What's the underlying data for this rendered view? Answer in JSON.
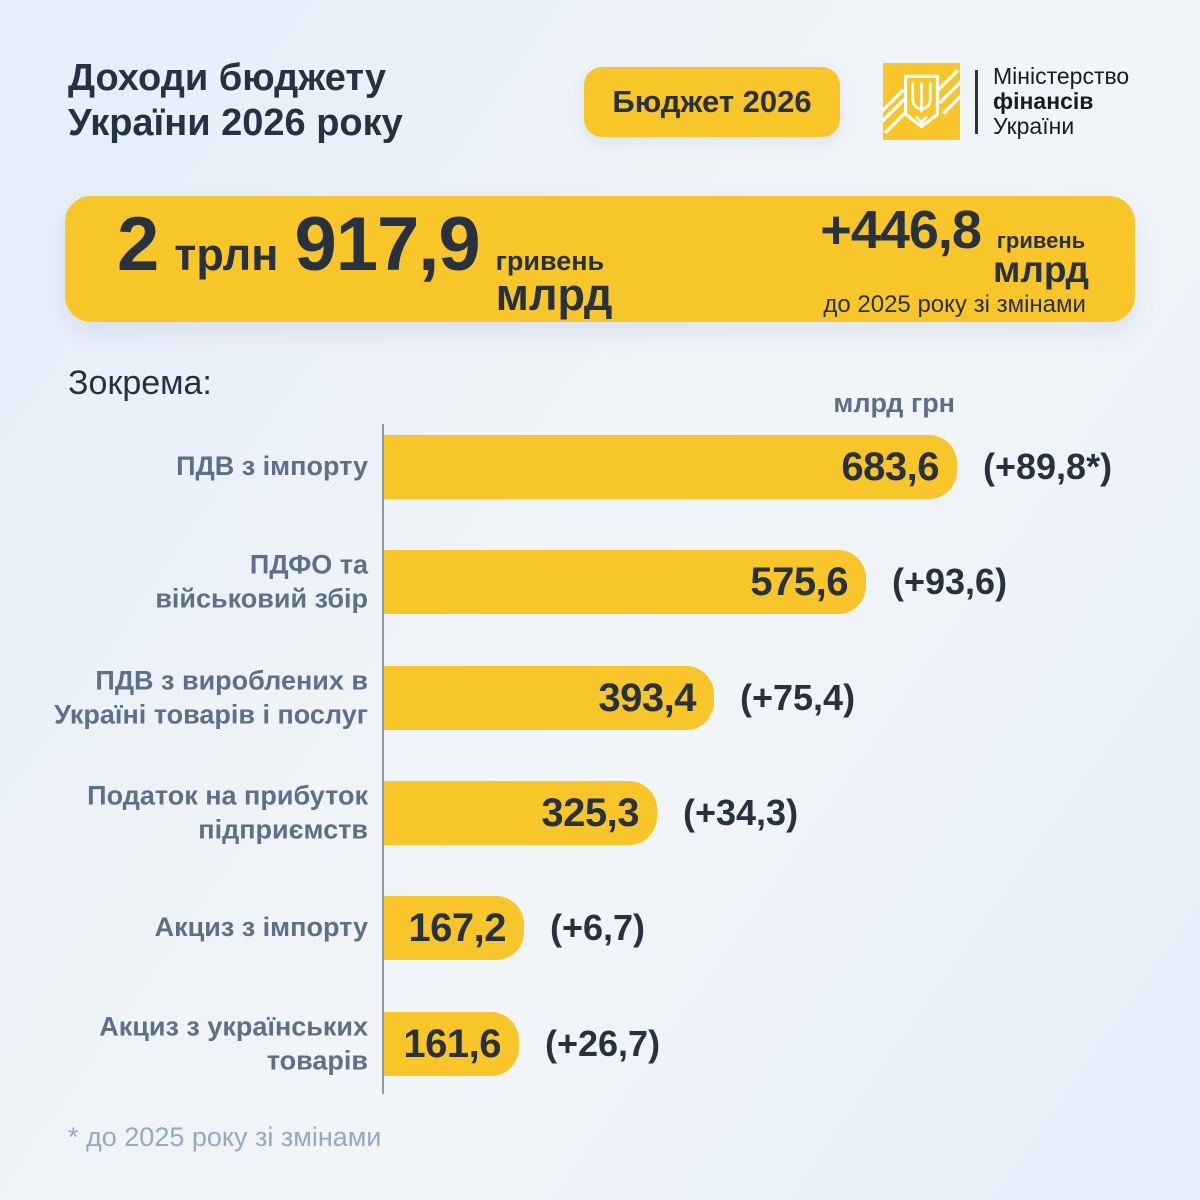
{
  "header": {
    "title_line1": "Доходи бюджету",
    "title_line2": "України 2026 року",
    "badge": "Бюджет 2026",
    "ministry": {
      "line1": "Міністерство",
      "line2": "фінансів",
      "line3": "України"
    }
  },
  "total_banner": {
    "value_trln": "2",
    "unit_trln": "трлн",
    "value_mlrd": "917,9",
    "currency_label": "гривень",
    "scale_label": "млрд",
    "delta_value": "+446,8",
    "delta_currency_label": "гривень",
    "delta_scale_label": "млрд",
    "delta_caption": "до 2025 року зі змінами"
  },
  "section_label": "Зокрема:",
  "column_header": "млрд грн",
  "footnote": "* до 2025 року зі змінами",
  "colors": {
    "brand_yellow": "#F9C62A",
    "navy_text": "#27313F",
    "label_slate": "#5D7088",
    "footnote_blue": "#93A9C5"
  },
  "chart_data": {
    "type": "bar",
    "orientation": "horizontal",
    "title": "Доходи бюджету України 2026 року",
    "unit": "млрд грн",
    "xlim": [
      0,
      700
    ],
    "grid": false,
    "legend": "none",
    "categories": [
      "ПДВ з імпорту",
      "ПДФО та військовий збір",
      "ПДВ з вироблених в Україні товарів і послуг",
      "Податок на прибуток підприємств",
      "Акциз з імпорту",
      "Акциз з українських товарів"
    ],
    "category_lines": [
      [
        "ПДВ з імпорту"
      ],
      [
        "ПДФО та",
        "військовий збір"
      ],
      [
        "ПДВ з вироблених в",
        "Україні товарів і послуг"
      ],
      [
        "Податок на прибуток",
        "підприємств"
      ],
      [
        "Акциз з імпорту"
      ],
      [
        "Акциз з українських",
        "товарів"
      ]
    ],
    "values": [
      683.6,
      575.6,
      393.4,
      325.3,
      167.2,
      161.6
    ],
    "value_labels": [
      "683,6",
      "575,6",
      "393,4",
      "325,3",
      "167,2",
      "161,6"
    ],
    "deltas": [
      89.8,
      93.6,
      75.4,
      34.3,
      6.7,
      26.7
    ],
    "delta_labels": [
      "(+89,8*)",
      "(+93,6)",
      "(+75,4)",
      "(+34,3)",
      "(+6,7)",
      "(+26,7)"
    ]
  }
}
